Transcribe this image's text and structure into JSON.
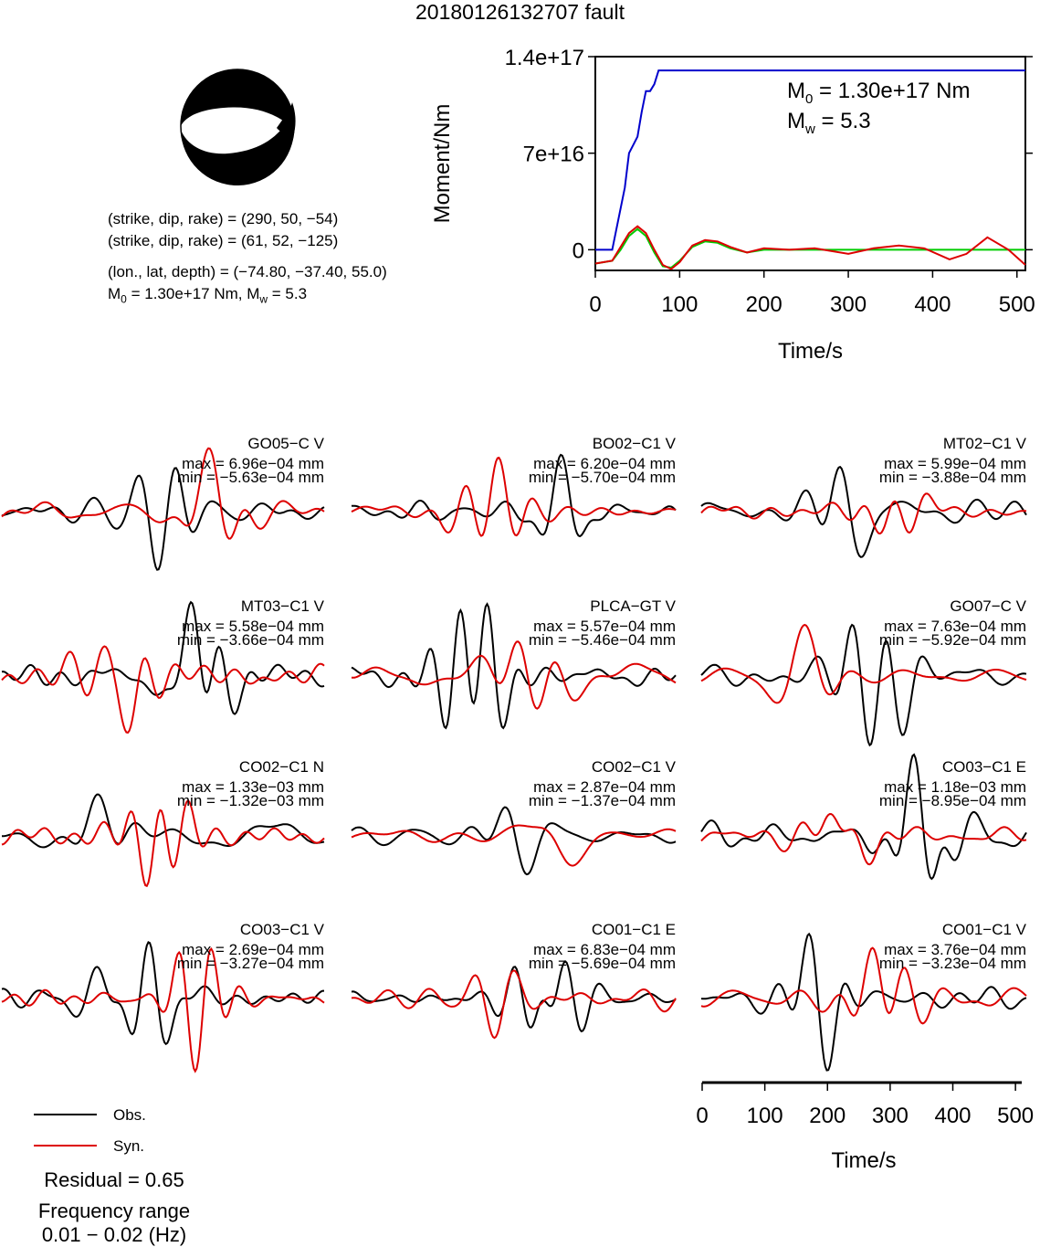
{
  "title": "20180126132707 fault",
  "mechanism": {
    "plane1": "(strike, dip, rake) = (290, 50, −54)",
    "plane2": "(strike, dip, rake) = (61, 52, −125)",
    "location": "(lon., lat, depth) = (−74.80, −37.40, 55.0)",
    "moment_line_m": "M",
    "moment_line_sub": "0",
    "moment_line_rest": " = 1.30e+17 Nm, M",
    "moment_line_sub2": "w",
    "moment_line_end": " = 5.3"
  },
  "moment_box": {
    "m0_prefix": "M",
    "m0_sub": "0",
    "m0_value": " = 1.30e+17 Nm",
    "mw_prefix": "M",
    "mw_sub": "w",
    "mw_value": " = 5.3"
  },
  "colors": {
    "observed": "#000000",
    "synthetic": "#dd0000",
    "moment_cumulative": "#0000cc",
    "moment_rate_green": "#00cc00",
    "moment_rate_red": "#dd0000"
  },
  "chart_data": [
    {
      "type": "line",
      "title": "",
      "xlabel": "Time/s",
      "ylabel": "Moment/Nm",
      "xlim": [
        0,
        510
      ],
      "ylim": [
        -15000000000000000,
        140000000000000000
      ],
      "xticks": [
        0,
        100,
        200,
        300,
        400,
        500
      ],
      "yticks": [
        0,
        70000000000000000,
        140000000000000000
      ],
      "ytick_labels": [
        "0",
        "7e+16",
        "1.4e+17"
      ],
      "series": [
        {
          "key": "cumulative",
          "x": [
            0,
            20,
            25,
            30,
            35,
            40,
            45,
            50,
            55,
            60,
            65,
            70,
            75,
            80,
            510
          ],
          "y": [
            0,
            0,
            1.5e+16,
            3e+16,
            4.5e+16,
            7e+16,
            7.6e+16,
            8.2e+16,
            1e+17,
            1.15e+17,
            1.15e+17,
            1.2e+17,
            1.3e+17,
            1.3e+17,
            1.3e+17
          ]
        },
        {
          "key": "rate_green",
          "x": [
            0,
            20,
            30,
            40,
            50,
            60,
            70,
            80,
            90,
            100,
            115,
            130,
            145,
            160,
            180,
            200,
            250,
            300,
            350,
            400,
            450,
            510
          ],
          "y": [
            -1e+16,
            -8000000000000000.0,
            0,
            1e+16,
            1.5e+16,
            1e+16,
            -2000000000000000.0,
            -1.2e+16,
            -1.3e+16,
            -8000000000000000.0,
            2000000000000000.0,
            6000000000000000.0,
            5000000000000000.0,
            1000000000000000.0,
            -2000000000000000.0,
            0,
            0,
            0,
            0,
            0,
            0,
            0
          ]
        },
        {
          "key": "rate_red",
          "x": [
            0,
            20,
            30,
            40,
            50,
            60,
            70,
            80,
            90,
            100,
            115,
            130,
            145,
            160,
            180,
            200,
            230,
            260,
            300,
            330,
            360,
            390,
            420,
            440,
            465,
            490,
            510
          ],
          "y": [
            -1e+16,
            -8000000000000000.0,
            2000000000000000.0,
            1.2e+16,
            1.7e+16,
            1.2e+16,
            0,
            -1.1e+16,
            -1.4e+16,
            -9000000000000000.0,
            3000000000000000.0,
            7000000000000000.0,
            6000000000000000.0,
            2000000000000000.0,
            -2000000000000000.0,
            1000000000000000.0,
            0,
            1000000000000000.0,
            -3000000000000000.0,
            1000000000000000.0,
            3000000000000000.0,
            1000000000000000.0,
            -7000000000000000.0,
            -3000000000000000.0,
            9000000000000000.0,
            0,
            -1.1e+16
          ]
        }
      ]
    },
    {
      "type": "line",
      "title": "",
      "xlabel": "Time/s",
      "ylabel": "",
      "xlim": [
        0,
        510
      ],
      "xticks": [
        0,
        100,
        200,
        300,
        400,
        500
      ],
      "series": [
        {
          "name": "Obs."
        },
        {
          "name": "Syn."
        }
      ]
    }
  ],
  "traces": [
    {
      "station": "GO05−C V",
      "max": "max = 6.96e−04 mm",
      "min": "min = −5.63e−04 mm",
      "obs_seed": 11,
      "syn_seed": 12
    },
    {
      "station": "BO02−C1 V",
      "max": "max = 6.20e−04 mm",
      "min": "min = −5.70e−04 mm",
      "obs_seed": 21,
      "syn_seed": 22
    },
    {
      "station": "MT02−C1 V",
      "max": "max = 5.99e−04 mm",
      "min": "min = −3.88e−04 mm",
      "obs_seed": 31,
      "syn_seed": 32
    },
    {
      "station": "MT03−C1 V",
      "max": "max = 5.58e−04 mm",
      "min": "min = −3.66e−04 mm",
      "obs_seed": 41,
      "syn_seed": 42
    },
    {
      "station": "PLCA−GT V",
      "max": "max = 5.57e−04 mm",
      "min": "min = −5.46e−04 mm",
      "obs_seed": 51,
      "syn_seed": 52
    },
    {
      "station": "GO07−C V",
      "max": "max = 7.63e−04 mm",
      "min": "min = −5.92e−04 mm",
      "obs_seed": 61,
      "syn_seed": 62
    },
    {
      "station": "CO02−C1 N",
      "max": "max = 1.33e−03 mm",
      "min": "min = −1.32e−03 mm",
      "obs_seed": 71,
      "syn_seed": 72
    },
    {
      "station": "CO02−C1 V",
      "max": "max = 2.87e−04 mm",
      "min": "min = −1.37e−04 mm",
      "obs_seed": 81,
      "syn_seed": 82
    },
    {
      "station": "CO03−C1 E",
      "max": "max = 1.18e−03 mm",
      "min": "min = −8.95e−04 mm",
      "obs_seed": 91,
      "syn_seed": 92
    },
    {
      "station": "CO03−C1 V",
      "max": "max = 2.69e−04 mm",
      "min": "min = −3.27e−04 mm",
      "obs_seed": 101,
      "syn_seed": 102
    },
    {
      "station": "CO01−C1 E",
      "max": "max = 6.83e−04 mm",
      "min": "min = −5.69e−04 mm",
      "obs_seed": 111,
      "syn_seed": 112
    },
    {
      "station": "CO01−C1 V",
      "max": "max = 3.76e−04 mm",
      "min": "min = −3.23e−04 mm",
      "obs_seed": 121,
      "syn_seed": 122
    }
  ],
  "legend": {
    "obs_label": "Obs.",
    "syn_label": "Syn."
  },
  "footer": {
    "residual": "Residual = 0.65",
    "freq_title": "Frequency range",
    "freq_value": "0.01 − 0.02 (Hz)"
  }
}
